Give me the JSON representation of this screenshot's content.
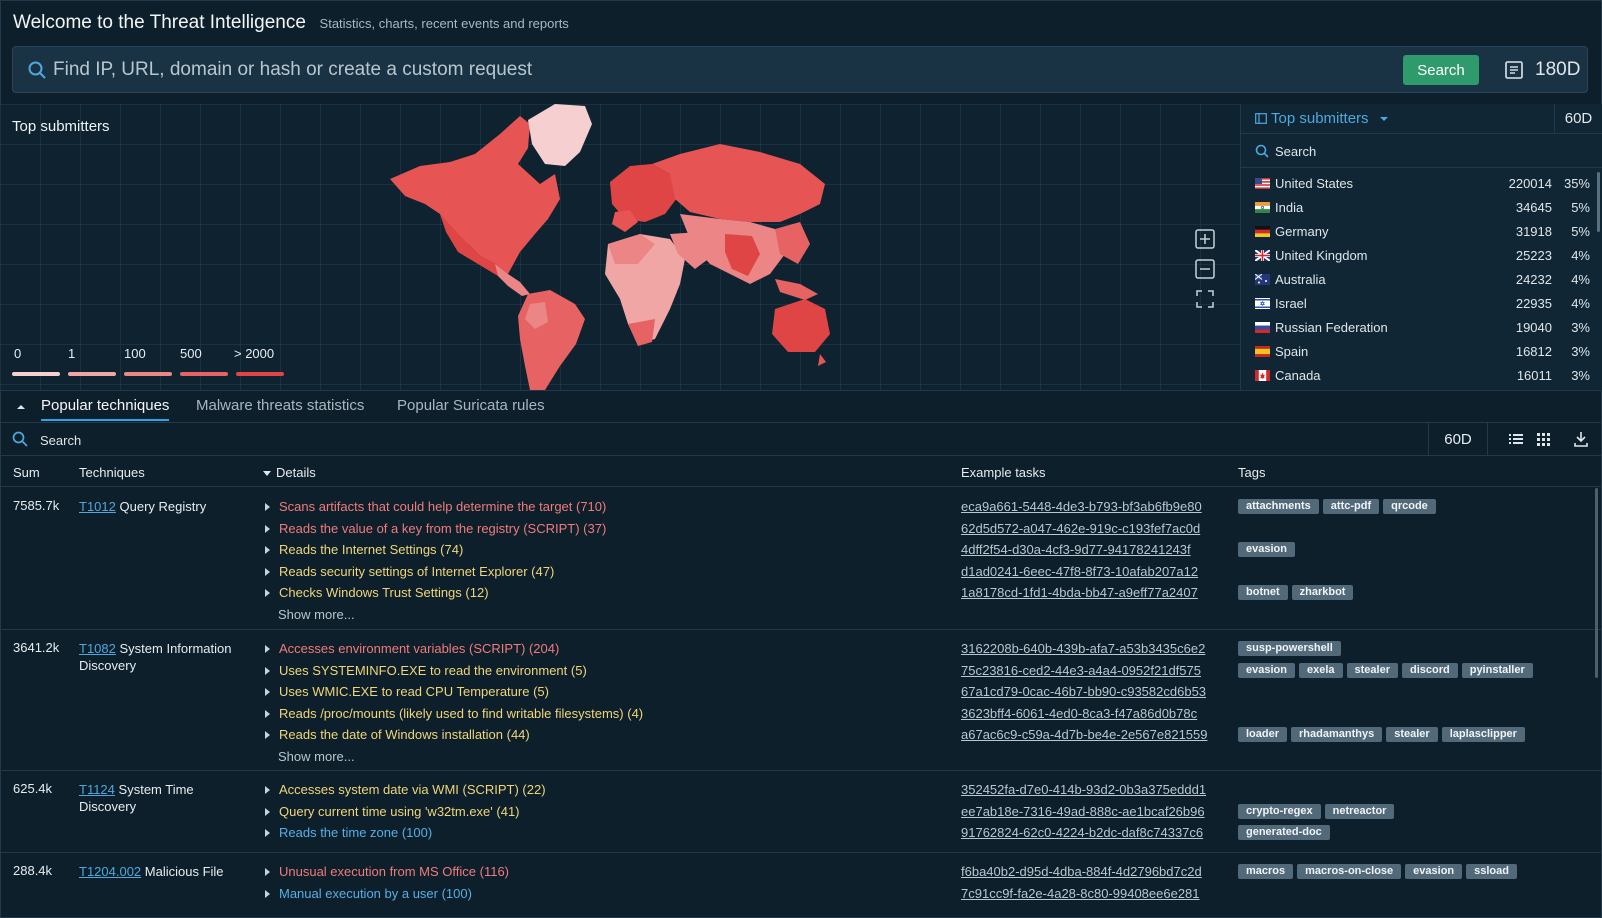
{
  "header": {
    "title": "Welcome to the Threat Intelligence",
    "subtitle": "Statistics, charts, recent events and reports"
  },
  "search": {
    "placeholder": "Find IP, URL, domain or hash or create a custom request",
    "button": "Search",
    "period": "180D"
  },
  "map": {
    "title": "Top submitters",
    "legend": [
      "0",
      "1",
      "100",
      "500",
      "> 2000"
    ],
    "legend_colors": [
      "#f6d0d0",
      "#f1a6a6",
      "#ec8585",
      "#e76262",
      "#e04545"
    ]
  },
  "side_panel": {
    "title": "Top submitters",
    "period": "60D",
    "search_placeholder": "Search",
    "countries": [
      {
        "name": "United States",
        "count": "220014",
        "pct": "35%",
        "flag": "us"
      },
      {
        "name": "India",
        "count": "34645",
        "pct": "5%",
        "flag": "in"
      },
      {
        "name": "Germany",
        "count": "31918",
        "pct": "5%",
        "flag": "de"
      },
      {
        "name": "United Kingdom",
        "count": "25223",
        "pct": "4%",
        "flag": "gb"
      },
      {
        "name": "Australia",
        "count": "24232",
        "pct": "4%",
        "flag": "au"
      },
      {
        "name": "Israel",
        "count": "22935",
        "pct": "4%",
        "flag": "il"
      },
      {
        "name": "Russian Federation",
        "count": "19040",
        "pct": "3%",
        "flag": "ru"
      },
      {
        "name": "Spain",
        "count": "16812",
        "pct": "3%",
        "flag": "es"
      },
      {
        "name": "Canada",
        "count": "16011",
        "pct": "3%",
        "flag": "ca"
      }
    ]
  },
  "tabs": [
    "Popular techniques",
    "Malware threats statistics",
    "Popular Suricata rules"
  ],
  "table": {
    "search_placeholder": "Search",
    "period": "60D",
    "headers": {
      "sum": "Sum",
      "techniques": "Techniques",
      "details": "Details",
      "tasks": "Example tasks",
      "tags": "Tags"
    },
    "rows": [
      {
        "sum": "7585.7k",
        "id": "T1012",
        "name": "Query Registry",
        "details": [
          {
            "text": "Scans artifacts that could help determine the target (710)",
            "sev": "red"
          },
          {
            "text": "Reads the value of a key from the registry (SCRIPT) (37)",
            "sev": "red"
          },
          {
            "text": "Reads the Internet Settings (74)",
            "sev": "yellow"
          },
          {
            "text": "Reads security settings of Internet Explorer (47)",
            "sev": "yellow"
          },
          {
            "text": "Checks Windows Trust Settings (12)",
            "sev": "yellow"
          }
        ],
        "more": "Show more...",
        "tasks": [
          "eca9a661-5448-4de3-b793-bf3ab6fb9e80",
          "62d5d572-a047-462e-919c-c193fef7ac0d",
          "4dff2f54-d30a-4cf3-9d77-94178241243f",
          "d1ad0241-6eec-47f8-8f73-10afab207a12",
          "1a8178cd-1fd1-4bda-bb47-a9eff77a2407"
        ],
        "tags": [
          [
            "attachments",
            "attc-pdf",
            "qrcode"
          ],
          [],
          [
            "evasion"
          ],
          [],
          [
            "botnet",
            "zharkbot"
          ]
        ]
      },
      {
        "sum": "3641.2k",
        "id": "T1082",
        "name": "System Information Discovery",
        "details": [
          {
            "text": "Accesses environment variables (SCRIPT) (204)",
            "sev": "red"
          },
          {
            "text": "Uses SYSTEMINFO.EXE to read the environment (5)",
            "sev": "yellow"
          },
          {
            "text": "Uses WMIC.EXE to read CPU Temperature (5)",
            "sev": "yellow"
          },
          {
            "text": "Reads /proc/mounts (likely used to find writable filesystems) (4)",
            "sev": "yellow"
          },
          {
            "text": "Reads the date of Windows installation (44)",
            "sev": "yellow"
          }
        ],
        "more": "Show more...",
        "tasks": [
          "3162208b-640b-439b-afa7-a53b3435c6e2",
          "75c23816-ced2-44e3-a4a4-0952f21df575",
          "67a1cd79-0cac-46b7-bb90-c93582cd6b53",
          "3623bff4-6061-4ed0-8ca3-f47a86d0b78c",
          "a67ac6c9-c59a-4d7b-be4e-2e567e821559"
        ],
        "tags": [
          [
            "susp-powershell"
          ],
          [
            "evasion",
            "exela",
            "stealer",
            "discord",
            "pyinstaller"
          ],
          [],
          [],
          [
            "loader",
            "rhadamanthys",
            "stealer",
            "laplasclipper"
          ]
        ]
      },
      {
        "sum": "625.4k",
        "id": "T1124",
        "name": "System Time Discovery",
        "details": [
          {
            "text": "Accesses system date via WMI (SCRIPT) (22)",
            "sev": "yellow"
          },
          {
            "text": "Query current time using 'w32tm.exe' (41)",
            "sev": "yellow"
          },
          {
            "text": "Reads the time zone (100)",
            "sev": "blue"
          }
        ],
        "more": "",
        "tasks": [
          "352452fa-d7e0-414b-93d2-0b3a375eddd1",
          "ee7ab18e-7316-49ad-888c-ae1bcaf26b96",
          "91762824-62c0-4224-b2dc-daf8c74337c6"
        ],
        "tags": [
          [],
          [
            "crypto-regex",
            "netreactor"
          ],
          [
            "generated-doc"
          ]
        ]
      },
      {
        "sum": "288.4k",
        "id": "T1204.002",
        "name": "Malicious File",
        "details": [
          {
            "text": "Unusual execution from MS Office (116)",
            "sev": "red"
          },
          {
            "text": "Manual execution by a user (100)",
            "sev": "blue"
          }
        ],
        "more": "",
        "tasks": [
          "f6ba40b2-d95d-4dba-884f-4d2796bd7c2d",
          "7c91cc9f-fa2e-4a28-8c80-99408ee6e281"
        ],
        "tags": [
          [
            "macros",
            "macros-on-close",
            "evasion",
            "ssload"
          ],
          []
        ]
      }
    ]
  }
}
